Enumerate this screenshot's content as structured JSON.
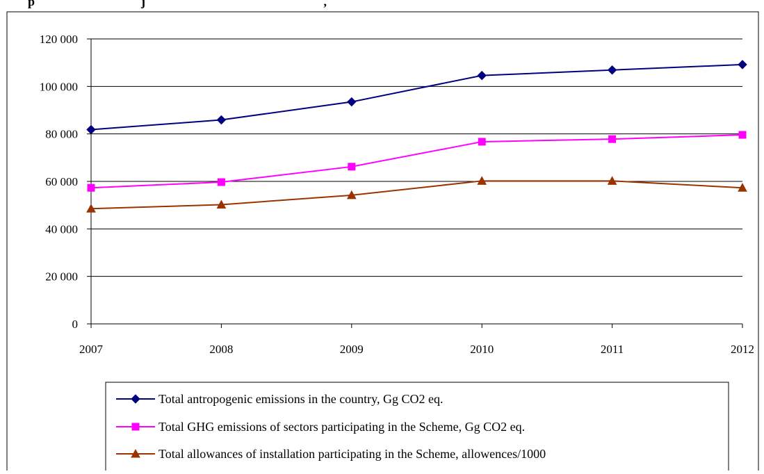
{
  "header": {
    "title_fragment": "p                                  j                                                         ,"
  },
  "chart_data": {
    "type": "line",
    "categories": [
      "2007",
      "2008",
      "2009",
      "2010",
      "2011",
      "2012"
    ],
    "ylim": [
      0,
      120000
    ],
    "yticks": [
      0,
      20000,
      40000,
      60000,
      80000,
      100000,
      120000
    ],
    "ytick_labels": [
      "0",
      "20 000",
      "40 000",
      "60 000",
      "80 000",
      "100 000",
      "120 000"
    ],
    "grid": true,
    "legend_position": "bottom",
    "series": [
      {
        "name": "Total antropogenic emissions in the country, Gg CO2 eq.",
        "values": [
          81800,
          85900,
          93500,
          104600,
          106900,
          109200
        ],
        "color": "#000080",
        "marker": "diamond"
      },
      {
        "name": "Total GHG emissions of sectors participating in the Scheme, Gg CO2 eq.",
        "values": [
          57300,
          59700,
          66200,
          76700,
          77800,
          79600
        ],
        "color": "#ff00ff",
        "marker": "square"
      },
      {
        "name": "Total allowances of installation participating in the Scheme, allowences/1000",
        "values": [
          48500,
          50200,
          54200,
          60200,
          60200,
          57300
        ],
        "color": "#993300",
        "marker": "triangle"
      }
    ]
  }
}
